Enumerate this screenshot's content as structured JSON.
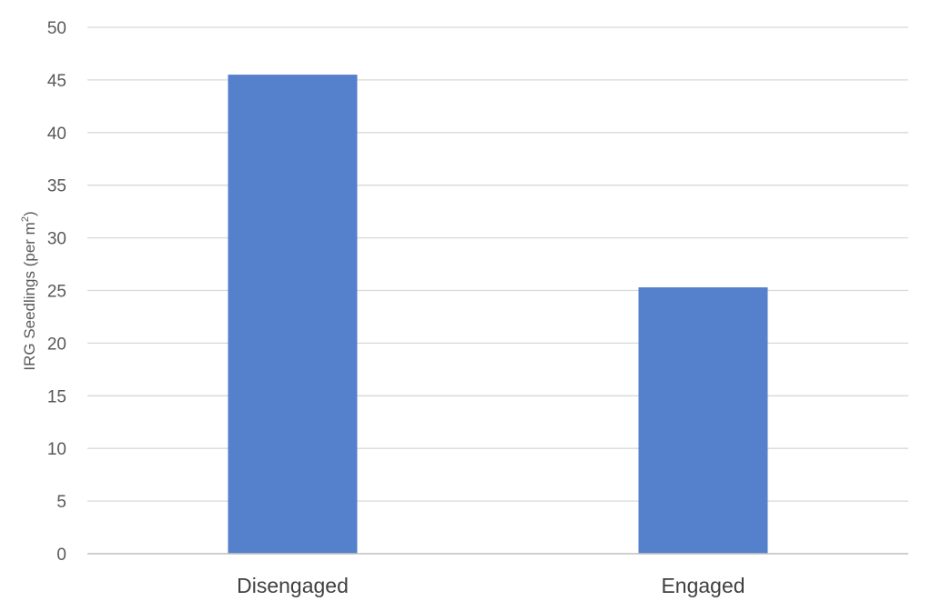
{
  "chart_data": {
    "type": "bar",
    "title": "",
    "xlabel": "",
    "ylabel": {
      "main": "IRG Seedlings (per m",
      "sup": "2",
      "end": ")"
    },
    "categories": [
      "Disengaged",
      "Engaged"
    ],
    "values": [
      45.5,
      25.3
    ],
    "ylim": [
      0,
      50
    ],
    "yticks": [
      "0",
      "5",
      "10",
      "15",
      "20",
      "25",
      "30",
      "35",
      "40",
      "45",
      "50"
    ],
    "grid": true,
    "legend": "none",
    "colors": {
      "bar": "#5580cb",
      "grid": "#d9d9d9",
      "axis": "#bfbfbf"
    }
  }
}
